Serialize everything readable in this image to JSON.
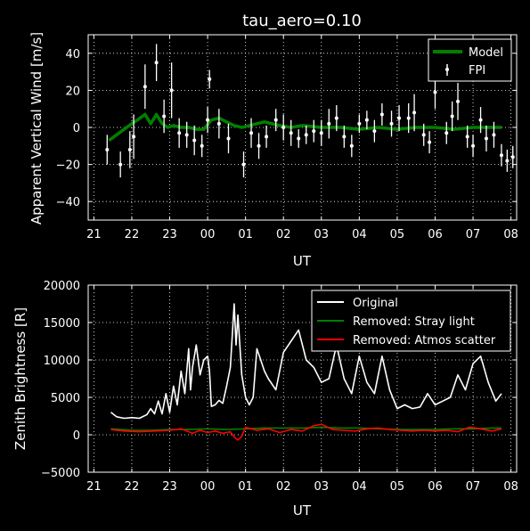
{
  "chart_data": [
    {
      "type": "scatter",
      "title": "tau_aero=0.10",
      "xlabel": "UT",
      "ylabel": "Apparent Vertical Wind [m/s]",
      "x_ticks": [
        "21",
        "22",
        "23",
        "00",
        "01",
        "02",
        "03",
        "04",
        "05",
        "06",
        "07",
        "08"
      ],
      "y_ticks": [
        "−40",
        "−20",
        "0",
        "20",
        "40"
      ],
      "xlim_hours": [
        20.85,
        32.15
      ],
      "ylim": [
        -50,
        50
      ],
      "grid": true,
      "legend_position": "top-right",
      "series": [
        {
          "name": "Model",
          "kind": "line",
          "color": "#008000",
          "x": [
            21.4,
            21.6,
            21.8,
            22.0,
            22.15,
            22.35,
            22.5,
            22.65,
            22.8,
            22.95,
            23.1,
            23.3,
            23.5,
            23.7,
            23.9,
            24.1,
            24.3,
            24.5,
            24.7,
            24.9,
            25.1,
            25.3,
            25.5,
            25.7,
            25.9,
            26.2,
            26.5,
            27.0,
            27.5,
            28.0,
            28.5,
            29.0,
            29.5,
            30.0,
            30.5,
            31.0,
            31.5,
            31.75
          ],
          "y": [
            -7,
            -4,
            -1,
            2,
            4,
            7,
            2,
            7,
            2,
            0,
            1,
            0,
            0,
            -1,
            -1,
            4,
            5,
            3,
            1,
            0,
            1,
            2,
            3,
            2,
            1,
            0,
            1,
            0,
            0,
            -1,
            0,
            -1,
            0,
            0,
            -1,
            0,
            0,
            0
          ]
        },
        {
          "name": "FPI",
          "kind": "errorbar",
          "color": "#ffffff",
          "points": [
            {
              "x": 21.35,
              "y": -12,
              "err": 8
            },
            {
              "x": 21.7,
              "y": -20,
              "err": 7
            },
            {
              "x": 21.95,
              "y": -12,
              "err": 10
            },
            {
              "x": 22.05,
              "y": -5,
              "err": 12
            },
            {
              "x": 22.35,
              "y": 22,
              "err": 12
            },
            {
              "x": 22.65,
              "y": 35,
              "err": 10
            },
            {
              "x": 22.85,
              "y": 6,
              "err": 9
            },
            {
              "x": 23.05,
              "y": 20,
              "err": 15
            },
            {
              "x": 23.25,
              "y": -3,
              "err": 8
            },
            {
              "x": 23.45,
              "y": -4,
              "err": 7
            },
            {
              "x": 23.65,
              "y": -7,
              "err": 8
            },
            {
              "x": 23.85,
              "y": -10,
              "err": 6
            },
            {
              "x": 24.0,
              "y": 4,
              "err": 7
            },
            {
              "x": 24.05,
              "y": 26,
              "err": 5
            },
            {
              "x": 24.3,
              "y": 2,
              "err": 8
            },
            {
              "x": 24.55,
              "y": -6,
              "err": 8
            },
            {
              "x": 24.95,
              "y": -20,
              "err": 7
            },
            {
              "x": 25.15,
              "y": -3,
              "err": 8
            },
            {
              "x": 25.35,
              "y": -10,
              "err": 7
            },
            {
              "x": 25.55,
              "y": -5,
              "err": 6
            },
            {
              "x": 25.8,
              "y": 4,
              "err": 6
            },
            {
              "x": 26.0,
              "y": 0,
              "err": 7
            },
            {
              "x": 26.2,
              "y": -3,
              "err": 7
            },
            {
              "x": 26.4,
              "y": -6,
              "err": 5
            },
            {
              "x": 26.6,
              "y": -4,
              "err": 5
            },
            {
              "x": 26.8,
              "y": -2,
              "err": 6
            },
            {
              "x": 27.0,
              "y": -3,
              "err": 7
            },
            {
              "x": 27.2,
              "y": 2,
              "err": 8
            },
            {
              "x": 27.4,
              "y": 5,
              "err": 7
            },
            {
              "x": 27.6,
              "y": -5,
              "err": 6
            },
            {
              "x": 27.8,
              "y": -10,
              "err": 6
            },
            {
              "x": 28.0,
              "y": 2,
              "err": 5
            },
            {
              "x": 28.2,
              "y": 4,
              "err": 5
            },
            {
              "x": 28.4,
              "y": -2,
              "err": 6
            },
            {
              "x": 28.6,
              "y": 7,
              "err": 6
            },
            {
              "x": 28.85,
              "y": 2,
              "err": 7
            },
            {
              "x": 29.05,
              "y": 5,
              "err": 7
            },
            {
              "x": 29.3,
              "y": 5,
              "err": 8
            },
            {
              "x": 29.45,
              "y": 8,
              "err": 10
            },
            {
              "x": 29.7,
              "y": -4,
              "err": 6
            },
            {
              "x": 29.85,
              "y": -8,
              "err": 6
            },
            {
              "x": 30.0,
              "y": 19,
              "err": 9
            },
            {
              "x": 30.3,
              "y": -3,
              "err": 6
            },
            {
              "x": 30.45,
              "y": 6,
              "err": 8
            },
            {
              "x": 30.6,
              "y": 14,
              "err": 10
            },
            {
              "x": 30.85,
              "y": -5,
              "err": 6
            },
            {
              "x": 31.0,
              "y": -10,
              "err": 6
            },
            {
              "x": 31.2,
              "y": 4,
              "err": 7
            },
            {
              "x": 31.35,
              "y": -6,
              "err": 7
            },
            {
              "x": 31.55,
              "y": -4,
              "err": 7
            },
            {
              "x": 31.75,
              "y": -15,
              "err": 6
            },
            {
              "x": 31.9,
              "y": -18,
              "err": 6
            },
            {
              "x": 32.05,
              "y": -16,
              "err": 6
            }
          ]
        }
      ]
    },
    {
      "type": "line",
      "title": "",
      "xlabel": "UT",
      "ylabel": "Zenith Brightness [R]",
      "x_ticks": [
        "21",
        "22",
        "23",
        "00",
        "01",
        "02",
        "03",
        "04",
        "05",
        "06",
        "07",
        "08"
      ],
      "y_ticks": [
        "−5000",
        "0",
        "5000",
        "10000",
        "15000",
        "20000"
      ],
      "xlim_hours": [
        20.85,
        32.15
      ],
      "ylim": [
        -5000,
        20000
      ],
      "grid": true,
      "legend_position": "top-right",
      "series": [
        {
          "name": "Original",
          "color": "#ffffff",
          "x": [
            21.45,
            21.6,
            21.8,
            22.0,
            22.2,
            22.4,
            22.5,
            22.6,
            22.7,
            22.8,
            22.9,
            23.0,
            23.1,
            23.2,
            23.3,
            23.4,
            23.5,
            23.55,
            23.6,
            23.7,
            23.8,
            23.9,
            24.0,
            24.05,
            24.1,
            24.2,
            24.3,
            24.4,
            24.5,
            24.6,
            24.7,
            24.75,
            24.8,
            24.9,
            25.0,
            25.1,
            25.2,
            25.3,
            25.4,
            25.5,
            25.6,
            25.8,
            26.0,
            26.2,
            26.4,
            26.5,
            26.6,
            26.8,
            27.0,
            27.2,
            27.4,
            27.6,
            27.8,
            28.0,
            28.2,
            28.4,
            28.6,
            28.8,
            29.0,
            29.2,
            29.4,
            29.6,
            29.8,
            30.0,
            30.2,
            30.4,
            30.6,
            30.8,
            31.0,
            31.2,
            31.4,
            31.6,
            31.75
          ],
          "y": [
            3000,
            2400,
            2200,
            2300,
            2200,
            2700,
            3500,
            2800,
            4500,
            2800,
            5500,
            3000,
            6500,
            4000,
            8500,
            5500,
            11500,
            6000,
            9000,
            12000,
            8000,
            10000,
            10500,
            8500,
            3800,
            4000,
            4600,
            4200,
            6500,
            9000,
            17500,
            12000,
            16000,
            8000,
            5000,
            4000,
            5000,
            11500,
            10000,
            8500,
            7500,
            6000,
            11000,
            12500,
            14000,
            12000,
            10000,
            9000,
            7000,
            7500,
            12000,
            7500,
            5500,
            10500,
            7000,
            5500,
            10500,
            6000,
            3500,
            4000,
            3500,
            3700,
            5500,
            4000,
            4500,
            5000,
            8000,
            6000,
            9500,
            10500,
            7000,
            4500,
            5500
          ]
        },
        {
          "name": "Removed: Stray light",
          "color": "#008000",
          "x": [
            21.45,
            22.0,
            22.5,
            23.0,
            23.5,
            24.0,
            24.5,
            25.0,
            25.5,
            26.0,
            26.5,
            27.0,
            27.5,
            28.0,
            28.5,
            29.0,
            29.5,
            30.0,
            30.5,
            31.0,
            31.5,
            31.75
          ],
          "y": [
            800,
            600,
            600,
            700,
            700,
            800,
            700,
            800,
            900,
            900,
            900,
            1000,
            900,
            900,
            800,
            700,
            700,
            700,
            800,
            800,
            900,
            900
          ]
        },
        {
          "name": "Removed: Atmos scatter",
          "color": "#ff0000",
          "x": [
            21.45,
            21.8,
            22.2,
            22.6,
            23.0,
            23.3,
            23.6,
            23.8,
            24.0,
            24.2,
            24.4,
            24.6,
            24.7,
            24.8,
            24.9,
            25.0,
            25.3,
            25.6,
            25.9,
            26.2,
            26.5,
            26.8,
            27.0,
            27.3,
            27.6,
            27.9,
            28.2,
            28.5,
            28.8,
            29.1,
            29.4,
            29.7,
            30.0,
            30.3,
            30.6,
            30.9,
            31.2,
            31.5,
            31.75
          ],
          "y": [
            700,
            500,
            400,
            500,
            600,
            800,
            200,
            600,
            300,
            500,
            200,
            400,
            -300,
            -700,
            -200,
            1000,
            600,
            800,
            300,
            700,
            500,
            1200,
            1400,
            700,
            600,
            500,
            800,
            900,
            700,
            600,
            500,
            600,
            500,
            600,
            400,
            1000,
            800,
            500,
            800
          ]
        }
      ]
    }
  ]
}
